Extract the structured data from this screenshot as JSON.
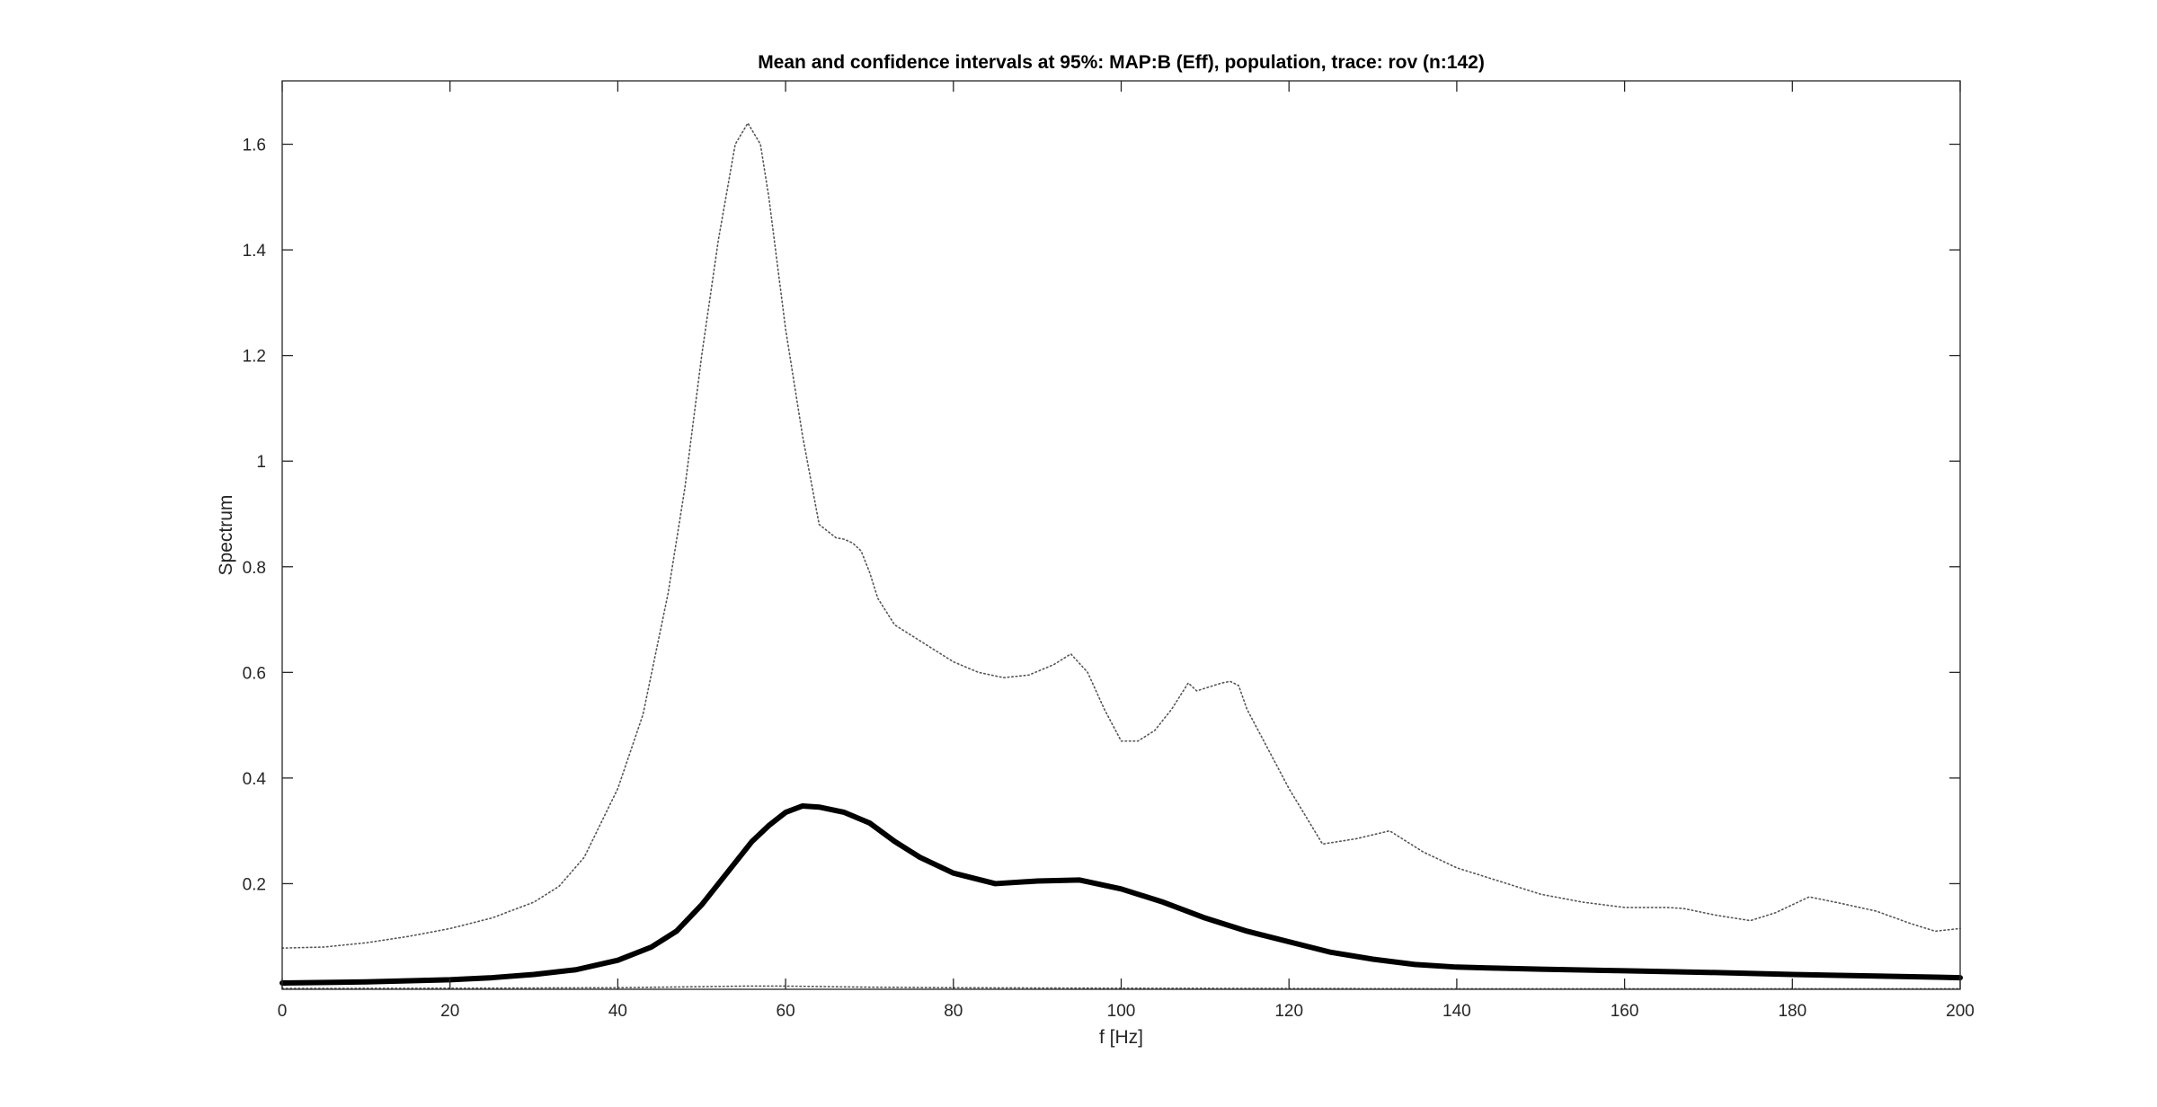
{
  "chart_data": {
    "type": "line",
    "title": "Mean and confidence intervals at 95%: MAP:B (Eff), population, trace: rov (n:142)",
    "xlabel": "f [Hz]",
    "ylabel": "Spectrum",
    "xlim": [
      0,
      200
    ],
    "ylim": [
      0,
      1.72
    ],
    "xticks": [
      0,
      20,
      40,
      60,
      80,
      100,
      120,
      140,
      160,
      180,
      200
    ],
    "yticks": [
      0.2,
      0.4,
      0.6,
      0.8,
      1,
      1.2,
      1.4,
      1.6
    ],
    "xtick_labels": [
      "0",
      "20",
      "40",
      "60",
      "80",
      "100",
      "120",
      "140",
      "160",
      "180",
      "200"
    ],
    "ytick_labels": [
      "0.2",
      "0.4",
      "0.6",
      "0.8",
      "1",
      "1.2",
      "1.4",
      "1.6"
    ],
    "grid": false,
    "colors": {
      "axes": "#262626",
      "mean_line": "#000000",
      "ci_line": "#555555"
    },
    "series": [
      {
        "role": "mean",
        "style": "solid",
        "x": [
          0,
          10,
          20,
          25,
          30,
          35,
          40,
          44,
          47,
          50,
          53,
          56,
          58,
          60,
          62,
          64,
          67,
          70,
          73,
          76,
          80,
          85,
          90,
          95,
          100,
          105,
          110,
          115,
          120,
          125,
          130,
          135,
          140,
          145,
          150,
          160,
          170,
          180,
          190,
          200
        ],
        "y": [
          0.012,
          0.014,
          0.018,
          0.022,
          0.028,
          0.037,
          0.055,
          0.08,
          0.11,
          0.16,
          0.22,
          0.28,
          0.31,
          0.335,
          0.347,
          0.345,
          0.335,
          0.315,
          0.28,
          0.25,
          0.22,
          0.2,
          0.205,
          0.207,
          0.19,
          0.165,
          0.135,
          0.11,
          0.09,
          0.07,
          0.057,
          0.047,
          0.042,
          0.04,
          0.038,
          0.035,
          0.032,
          0.028,
          0.025,
          0.022
        ]
      },
      {
        "role": "upper-ci",
        "style": "dotted",
        "x": [
          0,
          5,
          10,
          15,
          20,
          25,
          30,
          33,
          36,
          40,
          43,
          46,
          48,
          50,
          52,
          54,
          55.5,
          57,
          58,
          60,
          62,
          64,
          66,
          67,
          68,
          69,
          70,
          71,
          73,
          76,
          80,
          83,
          86,
          89,
          92,
          94,
          96,
          98,
          100,
          102,
          104,
          106,
          108,
          109,
          110,
          112,
          113,
          114,
          115,
          117,
          120,
          124,
          128,
          132,
          136,
          140,
          145,
          150,
          155,
          160,
          165,
          167,
          171,
          175,
          178,
          182,
          186,
          190,
          194,
          197,
          200
        ],
        "y": [
          0.078,
          0.08,
          0.088,
          0.1,
          0.115,
          0.135,
          0.165,
          0.195,
          0.25,
          0.38,
          0.52,
          0.75,
          0.95,
          1.2,
          1.42,
          1.6,
          1.64,
          1.6,
          1.5,
          1.25,
          1.05,
          0.88,
          0.855,
          0.852,
          0.845,
          0.83,
          0.79,
          0.74,
          0.69,
          0.66,
          0.62,
          0.6,
          0.59,
          0.595,
          0.615,
          0.635,
          0.6,
          0.53,
          0.47,
          0.47,
          0.49,
          0.53,
          0.58,
          0.565,
          0.57,
          0.58,
          0.583,
          0.575,
          0.53,
          0.47,
          0.38,
          0.275,
          0.285,
          0.3,
          0.26,
          0.23,
          0.205,
          0.18,
          0.165,
          0.155,
          0.155,
          0.153,
          0.14,
          0.13,
          0.145,
          0.175,
          0.162,
          0.148,
          0.125,
          0.11,
          0.115
        ]
      },
      {
        "role": "lower-ci",
        "style": "dotted",
        "x": [
          0,
          20,
          40,
          50,
          55,
          60,
          65,
          70,
          80,
          100,
          120,
          140,
          160,
          180,
          200
        ],
        "y": [
          0.0015,
          0.002,
          0.003,
          0.005,
          0.006,
          0.006,
          0.005,
          0.004,
          0.003,
          0.002,
          0.0015,
          0.001,
          0.001,
          0.001,
          0.001
        ]
      }
    ]
  }
}
